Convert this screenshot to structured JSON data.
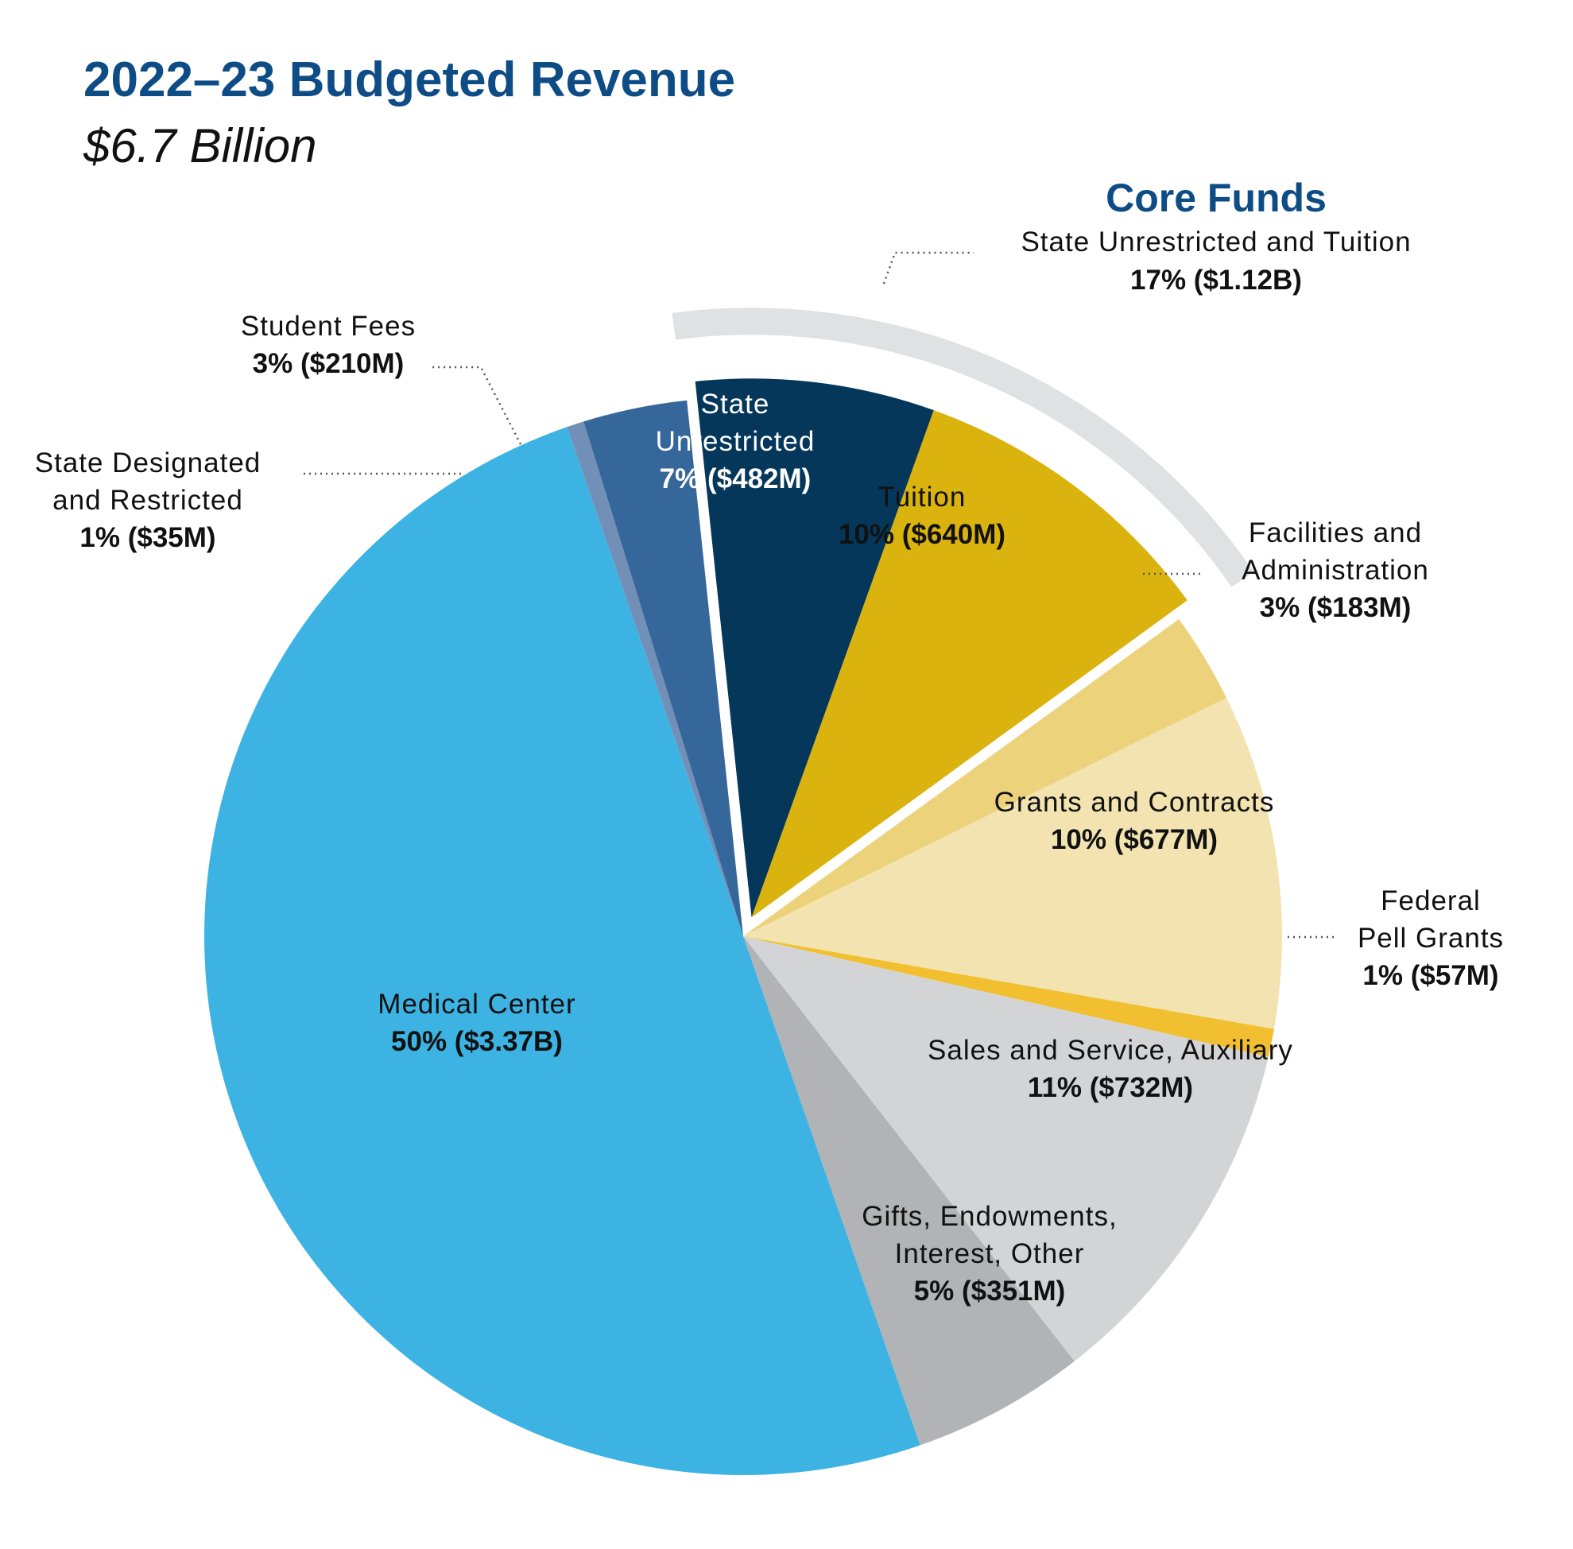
{
  "chart_data": {
    "type": "pie",
    "title": "2022–23 Budgeted Revenue",
    "subtitle": "$6.7 Billion",
    "group_label": "Core Funds",
    "group": {
      "name": "State Unrestricted and Tuition",
      "value_text": "17% ($1.12B)"
    },
    "slices": [
      {
        "key": "state_unrestricted",
        "name_lines": [
          "State",
          "Unrestricted"
        ],
        "value_text": "7% ($482M)",
        "value": 482,
        "color": "#04375a",
        "exploded": true,
        "label_color": "#ffffff"
      },
      {
        "key": "tuition",
        "name_lines": [
          "Tuition"
        ],
        "value_text": "10% ($640M)",
        "value": 640,
        "color": "#dbb30e",
        "exploded": true,
        "label_color": "#111111"
      },
      {
        "key": "facilities",
        "name_lines": [
          "Facilities and",
          "Administration"
        ],
        "value_text": "3% ($183M)",
        "value": 183,
        "color": "#ebd27b",
        "exploded": false,
        "label_color": "#111111"
      },
      {
        "key": "grants",
        "name_lines": [
          "Grants and Contracts"
        ],
        "value_text": "10% ($677M)",
        "value": 677,
        "color": "#f2e3b0",
        "exploded": false,
        "label_color": "#111111"
      },
      {
        "key": "pell",
        "name_lines": [
          "Federal",
          "Pell Grants"
        ],
        "value_text": "1% ($57M)",
        "value": 57,
        "color": "#f1bf30",
        "exploded": false,
        "label_color": "#111111"
      },
      {
        "key": "sales",
        "name_lines": [
          "Sales and Service, Auxiliary"
        ],
        "value_text": "11% ($732M)",
        "value": 732,
        "color": "#d3d4d6",
        "exploded": false,
        "label_color": "#111111"
      },
      {
        "key": "gifts",
        "name_lines": [
          "Gifts, Endowments,",
          "Interest, Other"
        ],
        "value_text": "5% ($351M)",
        "value": 351,
        "color": "#b2b3b6",
        "exploded": false,
        "label_color": "#111111"
      },
      {
        "key": "medical",
        "name_lines": [
          "Medical Center"
        ],
        "value_text": "50% ($3.37B)",
        "value": 3370,
        "color": "#3db3e3",
        "exploded": false,
        "label_color": "#111111"
      },
      {
        "key": "state_designated",
        "name_lines": [
          "State Designated",
          "and Restricted"
        ],
        "value_text": "1% ($35M)",
        "value": 35,
        "color": "#728fb7",
        "exploded": false,
        "label_color": "#111111"
      },
      {
        "key": "student_fees",
        "name_lines": [
          "Student Fees"
        ],
        "value_text": "3% ($210M)",
        "value": 210,
        "color": "#35679b",
        "exploded": false,
        "label_color": "#111111"
      }
    ],
    "colors": {
      "title": "#0e4c86",
      "core_funds": "#0e4c86",
      "core_arc": "#e0e1e3"
    }
  }
}
